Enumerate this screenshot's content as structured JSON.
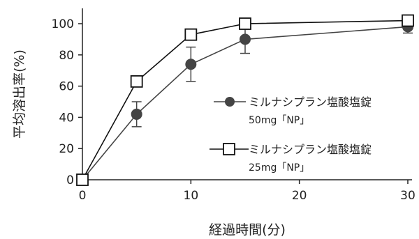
{
  "chart_data": {
    "type": "line",
    "title": "",
    "xlabel": "経過時間(分)",
    "ylabel": "平均溶出率(%)",
    "xlim": [
      0,
      30
    ],
    "ylim": [
      0,
      100
    ],
    "xticks": [
      0,
      10,
      20,
      30
    ],
    "yticks": [
      0,
      20,
      40,
      60,
      80,
      100
    ],
    "grid": false,
    "legend_position": "center-right",
    "series": [
      {
        "name": "ミルナシプラン塩酸塩錠",
        "sublabel": "50mg「NP」",
        "marker": "filled-circle",
        "color": "#444444",
        "points": [
          {
            "x": 0,
            "y": 0,
            "err": 0
          },
          {
            "x": 5,
            "y": 42,
            "err": 8
          },
          {
            "x": 10,
            "y": 74,
            "err": 11
          },
          {
            "x": 15,
            "y": 90,
            "err": 9
          },
          {
            "x": 30,
            "y": 98,
            "err": 4
          }
        ]
      },
      {
        "name": "ミルナシプラン塩酸塩錠",
        "sublabel": "25mg「NP」",
        "marker": "open-square",
        "color": "#111111",
        "points": [
          {
            "x": 0,
            "y": 0
          },
          {
            "x": 5,
            "y": 63
          },
          {
            "x": 10,
            "y": 93
          },
          {
            "x": 15,
            "y": 100
          },
          {
            "x": 30,
            "y": 102
          }
        ]
      }
    ]
  }
}
